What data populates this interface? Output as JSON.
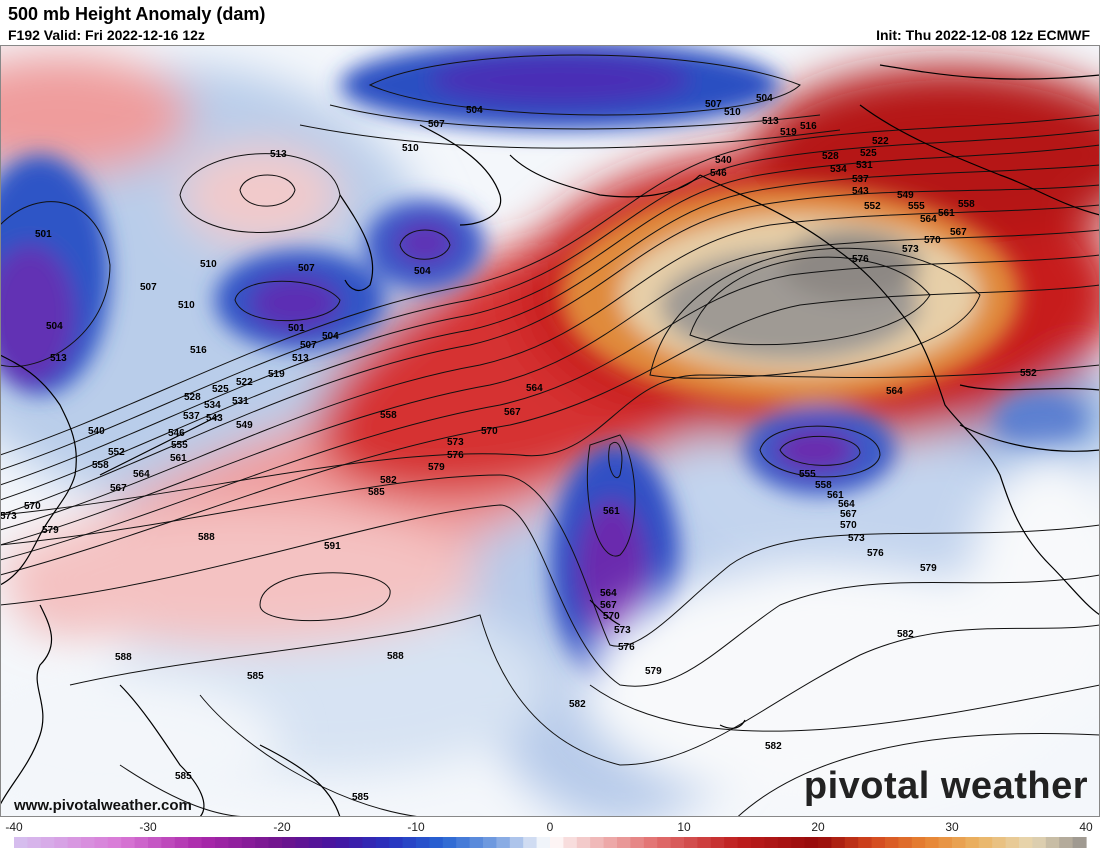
{
  "header": {
    "title": "500 mb Height Anomaly (dam)",
    "valid": "F192 Valid: Fri 2022-12-16 12z",
    "init": "Init: Thu 2022-12-08 12z ECMWF"
  },
  "branding": {
    "logo_text": "pivotal weather",
    "website": "www.pivotalweather.com"
  },
  "colorbar": {
    "tick_labels": [
      "-40",
      "-30",
      "-20",
      "-10",
      "0",
      "10",
      "20",
      "30",
      "40"
    ],
    "min": -40,
    "max": 40
  },
  "contour_labels": [
    "504",
    "507",
    "510",
    "513",
    "519",
    "516",
    "522",
    "525",
    "528",
    "531",
    "534",
    "537",
    "543",
    "549",
    "552",
    "555",
    "558",
    "561",
    "564",
    "567",
    "570",
    "573",
    "576",
    "579",
    "582",
    "585",
    "588",
    "591",
    "501",
    "540",
    "546"
  ],
  "colors": {
    "deep_negative": "#5a1aa6",
    "negative": "#2f56c9",
    "light_negative": "#c6d6ee",
    "positive": "#e06060",
    "strong_positive": "#b31010",
    "very_strong_positive": "#d4731f",
    "extreme_positive": "#8e8a86"
  }
}
